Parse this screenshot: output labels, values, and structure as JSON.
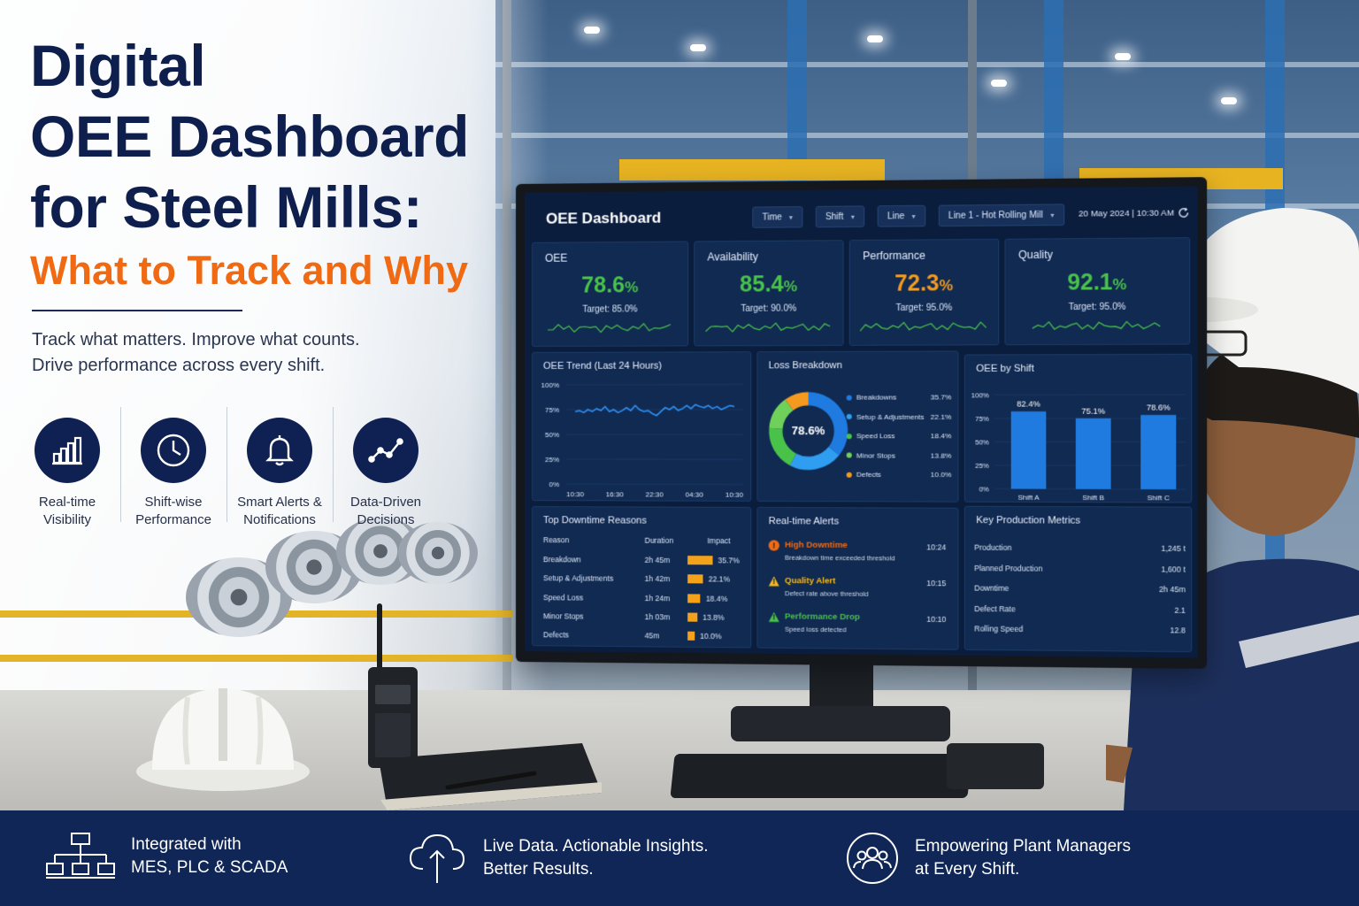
{
  "headline": {
    "line1": "Digital",
    "line2": "OEE Dashboard",
    "line3": "for Steel Mills:",
    "subtitle": "What to Track and Why"
  },
  "tagline": {
    "line1": "Track what matters. Improve what counts.",
    "line2": "Drive performance across every shift."
  },
  "features": [
    {
      "icon": "bar-chart-icon",
      "line1": "Real-time",
      "line2": "Visibility"
    },
    {
      "icon": "clock-icon",
      "line1": "Shift-wise",
      "line2": "Performance"
    },
    {
      "icon": "bell-icon",
      "line1": "Smart Alerts &",
      "line2": "Notifications"
    },
    {
      "icon": "trend-line-icon",
      "line1": "Data-Driven",
      "line2": "Decisions"
    }
  ],
  "dashboard": {
    "title": "OEE Dashboard",
    "filters": {
      "time": "Time",
      "shift": "Shift",
      "line": "Line",
      "line_selected": "Line 1 - Hot Rolling Mill"
    },
    "datetime": "20 May 2024  |  10:30 AM",
    "kpis": [
      {
        "label": "OEE",
        "value": "78.6",
        "unit": "%",
        "target": "Target: 85.0%",
        "color": "#49c24a"
      },
      {
        "label": "Availability",
        "value": "85.4",
        "unit": "%",
        "target": "Target: 90.0%",
        "color": "#49c24a"
      },
      {
        "label": "Performance",
        "value": "72.3",
        "unit": "%",
        "target": "Target: 95.0%",
        "color": "#f39a1f"
      },
      {
        "label": "Quality",
        "value": "92.1",
        "unit": "%",
        "target": "Target: 95.0%",
        "color": "#49c24a"
      }
    ],
    "trend": {
      "title": "OEE Trend (Last 24 Hours)",
      "y_ticks": [
        "100%",
        "75%",
        "50%",
        "25%",
        "0%"
      ],
      "x_ticks": [
        "10:30",
        "16:30",
        "22:30",
        "04:30",
        "10:30"
      ]
    },
    "loss": {
      "title": "Loss Breakdown",
      "center": "78.6%",
      "items": [
        {
          "label": "Breakdowns",
          "pct": "35.7%",
          "value": 35.7,
          "color": "#1f7be0"
        },
        {
          "label": "Setup & Adjustments",
          "pct": "22.1%",
          "value": 22.1,
          "color": "#2f9df0"
        },
        {
          "label": "Speed Loss",
          "pct": "18.4%",
          "value": 18.4,
          "color": "#49c24a"
        },
        {
          "label": "Minor Stops",
          "pct": "13.8%",
          "value": 13.8,
          "color": "#6fd15a"
        },
        {
          "label": "Defects",
          "pct": "10.0%",
          "value": 10.0,
          "color": "#f39a1f"
        }
      ]
    },
    "by_shift": {
      "title": "OEE by Shift",
      "y_ticks": [
        "100%",
        "75%",
        "50%",
        "25%",
        "0%"
      ],
      "bars": [
        {
          "label": "Shift A",
          "value": 82.4,
          "text": "82.4%"
        },
        {
          "label": "Shift B",
          "value": 75.1,
          "text": "75.1%"
        },
        {
          "label": "Shift C",
          "value": 78.6,
          "text": "78.6%"
        }
      ]
    },
    "downtime": {
      "title": "Top Downtime Reasons",
      "headers": {
        "reason": "Reason",
        "duration": "Duration",
        "impact": "Impact"
      },
      "rows": [
        {
          "reason": "Breakdown",
          "duration": "2h 45m",
          "impact": "35.7%",
          "value": 35.7
        },
        {
          "reason": "Setup & Adjustments",
          "duration": "1h 42m",
          "impact": "22.1%",
          "value": 22.1
        },
        {
          "reason": "Speed Loss",
          "duration": "1h 24m",
          "impact": "18.4%",
          "value": 18.4
        },
        {
          "reason": "Minor Stops",
          "duration": "1h 03m",
          "impact": "13.8%",
          "value": 13.8
        },
        {
          "reason": "Defects",
          "duration": "45m",
          "impact": "10.0%",
          "value": 10.0
        }
      ]
    },
    "alerts": {
      "title": "Real-time Alerts",
      "items": [
        {
          "title": "High Downtime",
          "desc": "Breakdown time exceeded threshold",
          "time": "10:24",
          "color": "#f36a12",
          "icon": "alert-circle-icon"
        },
        {
          "title": "Quality Alert",
          "desc": "Defect rate above threshold",
          "time": "10:15",
          "color": "#f5b91e",
          "icon": "warning-triangle-icon"
        },
        {
          "title": "Performance Drop",
          "desc": "Speed loss detected",
          "time": "10:10",
          "color": "#49c24a",
          "icon": "warning-triangle-icon"
        }
      ]
    },
    "metrics": {
      "title": "Key Production Metrics",
      "rows": [
        {
          "label": "Production",
          "value": "1,245 t"
        },
        {
          "label": "Planned Production",
          "value": "1,600 t"
        },
        {
          "label": "Downtime",
          "value": "2h 45m"
        },
        {
          "label": "Defect Rate",
          "value": "2.1"
        },
        {
          "label": "Rolling Speed",
          "value": "12.8"
        }
      ]
    }
  },
  "footer": [
    {
      "icon": "network-icon",
      "line1": "Integrated with",
      "line2": "MES, PLC & SCADA"
    },
    {
      "icon": "cloud-upload-icon",
      "line1": "Live Data. Actionable Insights.",
      "line2": "Better Results."
    },
    {
      "icon": "team-icon",
      "line1": "Empowering Plant Managers",
      "line2": "at Every Shift."
    }
  ]
}
